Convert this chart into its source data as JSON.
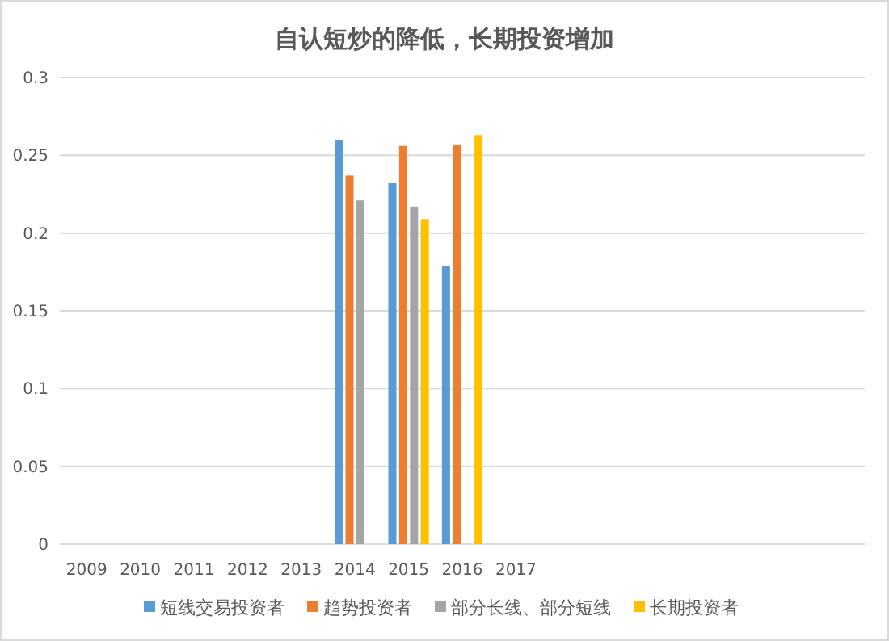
{
  "chart_data": {
    "type": "bar",
    "title": "自认短炒的降低，长期投资增加",
    "categories": [
      "2009",
      "2010",
      "2011",
      "2012",
      "2013",
      "2014",
      "2015",
      "2016",
      "2017",
      null,
      null,
      null,
      null,
      null,
      null
    ],
    "series": [
      {
        "name": "短线交易投资者",
        "color": "#5b9bd5",
        "values": [
          null,
          null,
          null,
          null,
          null,
          0.26,
          0.232,
          0.179,
          null,
          null,
          null,
          null,
          null,
          null,
          null
        ]
      },
      {
        "name": "趋势投资者",
        "color": "#ed7d31",
        "values": [
          null,
          null,
          null,
          null,
          null,
          0.237,
          0.256,
          0.257,
          null,
          null,
          null,
          null,
          null,
          null,
          null
        ]
      },
      {
        "name": "部分长线、部分短线",
        "color": "#a5a5a5",
        "values": [
          null,
          null,
          null,
          null,
          null,
          0.221,
          0.217,
          null,
          null,
          null,
          null,
          null,
          null,
          null,
          null
        ]
      },
      {
        "name": "长期投资者",
        "color": "#ffc000",
        "values": [
          null,
          null,
          null,
          null,
          null,
          null,
          0.209,
          0.263,
          null,
          null,
          null,
          null,
          null,
          null,
          null
        ]
      }
    ],
    "ylim": [
      0,
      0.3
    ],
    "yticks": [
      0,
      0.05,
      0.1,
      0.15,
      0.2,
      0.25,
      0.3
    ],
    "grid": "y",
    "legend": "bottom"
  }
}
